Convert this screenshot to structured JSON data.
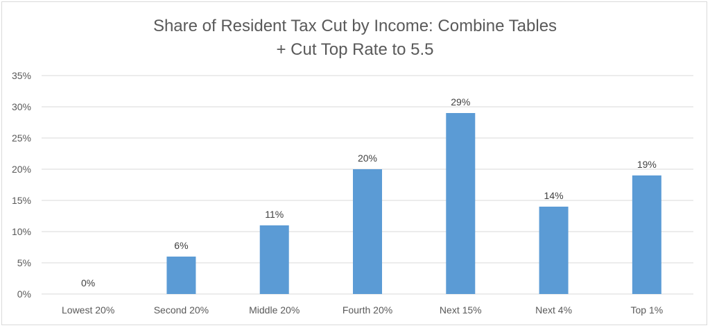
{
  "chart_data": {
    "type": "bar",
    "title_lines": [
      "Share of Resident Tax Cut by Income: Combine Tables",
      "+ Cut Top Rate to 5.5"
    ],
    "categories": [
      "Lowest 20%",
      "Second 20%",
      "Middle 20%",
      "Fourth 20%",
      "Next 15%",
      "Next 4%",
      "Top 1%"
    ],
    "values": [
      0,
      6,
      11,
      20,
      29,
      14,
      19
    ],
    "value_labels": [
      "0%",
      "6%",
      "11%",
      "20%",
      "29%",
      "14%",
      "19%"
    ],
    "ylim": [
      0,
      35
    ],
    "yticks": [
      0,
      5,
      10,
      15,
      20,
      25,
      30,
      35
    ],
    "ytick_labels": [
      "0%",
      "5%",
      "10%",
      "15%",
      "20%",
      "25%",
      "30%",
      "35%"
    ],
    "grid": true,
    "legend": "none",
    "bar_color": "#5b9bd5",
    "grid_color": "#d9d9d9"
  }
}
